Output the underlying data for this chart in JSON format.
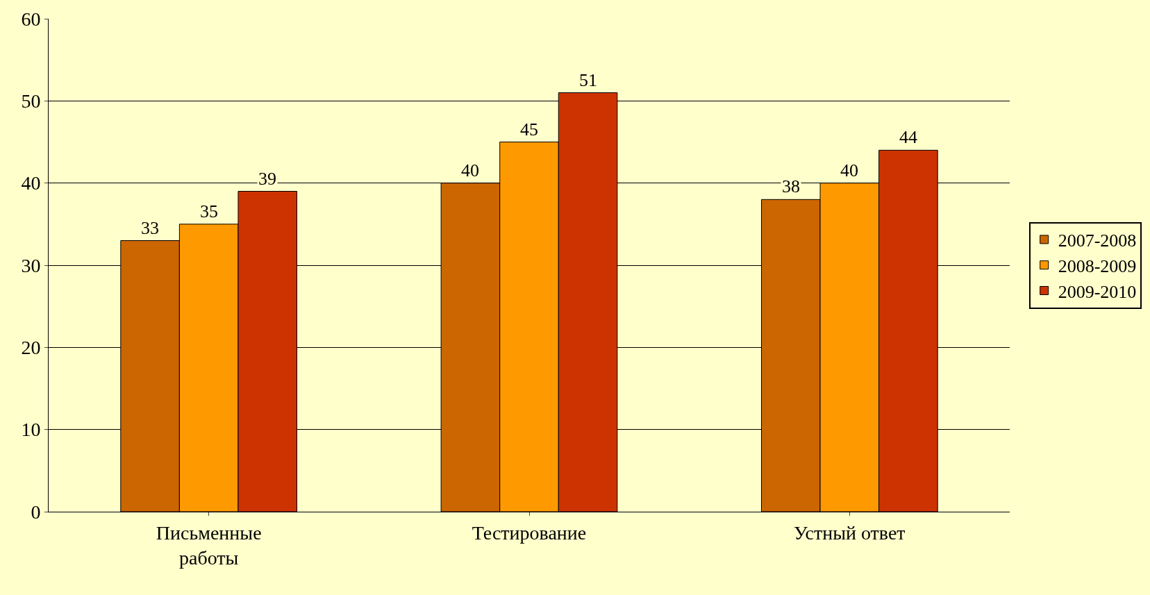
{
  "chart_data": {
    "type": "bar",
    "categories": [
      "Письменные работы",
      "Тестирование",
      "Устный ответ"
    ],
    "series": [
      {
        "name": "2007-2008",
        "color": "#cc6600",
        "values": [
          33,
          40,
          38
        ]
      },
      {
        "name": "2008-2009",
        "color": "#ff9900",
        "values": [
          35,
          45,
          40
        ]
      },
      {
        "name": "2009-2010",
        "color": "#cc3300",
        "values": [
          39,
          51,
          44
        ]
      }
    ],
    "ylim": [
      0,
      60
    ],
    "yticks": [
      0,
      10,
      20,
      30,
      40,
      50,
      60
    ],
    "grid": "y",
    "legend": "right",
    "data_labels": true
  }
}
